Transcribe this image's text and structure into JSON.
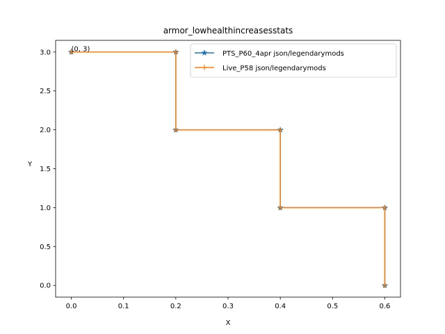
{
  "chart_data": {
    "type": "line",
    "title": "armor_lowhealthincreasesstats",
    "xlabel": "X",
    "ylabel": "Y",
    "xlim": [
      -0.03,
      0.63
    ],
    "ylim": [
      -0.15,
      3.15
    ],
    "xticks": [
      0.0,
      0.1,
      0.2,
      0.3,
      0.4,
      0.5,
      0.6
    ],
    "xtick_labels": [
      "0.0",
      "0.1",
      "0.2",
      "0.3",
      "0.4",
      "0.5",
      "0.6"
    ],
    "yticks": [
      0.0,
      0.5,
      1.0,
      1.5,
      2.0,
      2.5,
      3.0
    ],
    "ytick_labels": [
      "0.0",
      "0.5",
      "1.0",
      "1.5",
      "2.0",
      "2.5",
      "3.0"
    ],
    "grid": false,
    "legend_position": "top-right",
    "series": [
      {
        "name": "PTS_P60_4apr json/legendarymods",
        "color": "#1f77b4",
        "marker": "star",
        "x": [
          0,
          0.2,
          0.2,
          0.4,
          0.4,
          0.6,
          0.6
        ],
        "y": [
          3,
          3,
          2,
          2,
          1,
          1,
          0
        ]
      },
      {
        "name": "Live_P58 json/legendarymods",
        "color": "#ff7f0e",
        "marker": "plus",
        "x": [
          0,
          0.2,
          0.2,
          0.4,
          0.4,
          0.6,
          0.6
        ],
        "y": [
          3,
          3,
          2,
          2,
          1,
          1,
          0
        ]
      }
    ],
    "annotations": [
      {
        "text": "(0, 3)",
        "x": 0,
        "y": 3
      }
    ]
  }
}
